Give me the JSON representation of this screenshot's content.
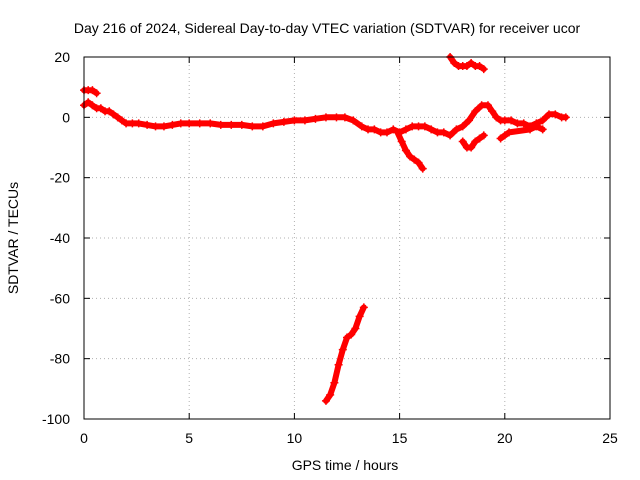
{
  "chart_data": {
    "type": "scatter",
    "title": "Day 216 of 2024, Sidereal Day-to-day VTEC variation (SDTVAR) for receiver ucor",
    "xlabel": "GPS time / hours",
    "ylabel": "SDTVAR / TECUs",
    "xlim": [
      0,
      25
    ],
    "ylim": [
      -100,
      20
    ],
    "xticks": [
      0,
      5,
      10,
      15,
      20,
      25
    ],
    "yticks": [
      -100,
      -80,
      -60,
      -40,
      -20,
      0,
      20
    ],
    "grid": true,
    "series": [
      {
        "name": "main-trace",
        "color": "#ff0000",
        "marker": "+",
        "x": [
          0.0,
          0.2,
          0.4,
          0.6,
          0.8,
          1.0,
          1.2,
          1.4,
          1.6,
          1.8,
          2.0,
          2.3,
          2.6,
          3.0,
          3.4,
          3.8,
          4.2,
          4.6,
          5.0,
          5.5,
          6.0,
          6.5,
          7.0,
          7.5,
          8.0,
          8.5,
          9.0,
          9.5,
          10.0,
          10.5,
          11.0,
          11.5,
          12.0,
          12.4,
          12.8,
          13.2,
          13.5,
          13.8,
          14.1,
          14.4,
          14.7,
          15.0,
          15.3,
          15.6,
          15.9,
          16.2,
          16.5,
          16.8,
          17.1,
          17.4,
          17.7,
          18.0,
          18.3,
          18.6,
          18.9,
          19.2,
          19.4,
          19.6,
          19.8,
          20.0,
          20.3,
          20.6,
          20.9,
          21.2,
          21.5,
          21.8,
          22.1,
          22.4,
          22.7,
          22.9
        ],
        "y": [
          4,
          5,
          4,
          3,
          3,
          2,
          2,
          1,
          0,
          -1,
          -2,
          -2,
          -2,
          -2.5,
          -3,
          -3,
          -2.5,
          -2,
          -2,
          -2,
          -2,
          -2.5,
          -2.5,
          -2.5,
          -3,
          -3,
          -2,
          -1.5,
          -1,
          -1,
          -0.5,
          0,
          0,
          0,
          -1,
          -3,
          -4,
          -4,
          -5,
          -5,
          -4,
          -5,
          -4,
          -3,
          -3,
          -3,
          -4,
          -5,
          -5,
          -6,
          -4,
          -3,
          -1,
          2,
          4,
          4,
          2,
          0,
          -1,
          -1,
          -1,
          -2,
          -2,
          -3,
          -2,
          -1,
          1,
          1,
          0,
          0
        ]
      },
      {
        "name": "drop-segment",
        "color": "#ff0000",
        "marker": "+",
        "x": [
          11.5,
          11.7,
          11.9,
          12.1,
          12.3,
          12.5,
          12.7,
          12.9,
          13.1,
          13.3
        ],
        "y": [
          -94,
          -92,
          -88,
          -82,
          -77,
          -73,
          -72,
          -70,
          -66,
          -63
        ]
      },
      {
        "name": "upper-segment",
        "color": "#ff0000",
        "marker": "+",
        "x": [
          17.4,
          17.6,
          17.8,
          18.0,
          18.2,
          18.4,
          18.6,
          18.8,
          19.0
        ],
        "y": [
          20,
          18,
          17,
          17,
          17,
          18,
          17,
          17,
          16
        ]
      },
      {
        "name": "left-small-segment",
        "color": "#ff0000",
        "marker": "+",
        "x": [
          0.0,
          0.2,
          0.4,
          0.6
        ],
        "y": [
          9,
          9,
          9,
          8
        ]
      },
      {
        "name": "branch-down",
        "color": "#ff0000",
        "marker": "+",
        "x": [
          14.9,
          15.1,
          15.3,
          15.5,
          15.7,
          15.9,
          16.1
        ],
        "y": [
          -5,
          -8,
          -11,
          -13,
          -14,
          -15,
          -17
        ]
      },
      {
        "name": "branch-right",
        "color": "#ff0000",
        "marker": "+",
        "x": [
          18.0,
          18.2,
          18.4,
          18.6,
          18.8,
          19.0
        ],
        "y": [
          -8,
          -10,
          -10,
          -8,
          -7,
          -6
        ]
      },
      {
        "name": "lower-loop",
        "color": "#ff0000",
        "marker": "+",
        "x": [
          19.8,
          20.0,
          20.2,
          21.2,
          21.5,
          21.8
        ],
        "y": [
          -7,
          -6,
          -5,
          -4,
          -3,
          -4
        ]
      }
    ]
  }
}
